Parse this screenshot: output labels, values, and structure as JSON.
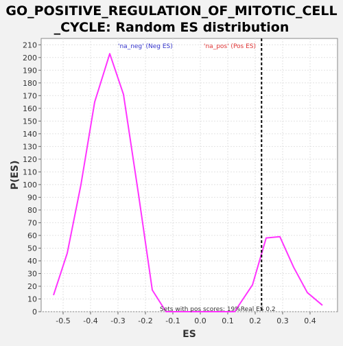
{
  "chart_data": {
    "type": "line",
    "title_line1": "GO_POSITIVE_REGULATION_OF_MITOTIC_CELL",
    "title_line2": "_CYCLE: Random ES distribution",
    "xlabel": "ES",
    "ylabel": "P(ES)",
    "xlim": [
      -0.58,
      0.5
    ],
    "ylim": [
      0,
      215
    ],
    "xticks": [
      -0.5,
      -0.4,
      -0.3,
      -0.2,
      -0.1,
      0.0,
      0.1,
      0.2,
      0.3,
      0.4
    ],
    "xtick_labels": [
      "-0.5",
      "-0.4",
      "-0.3",
      "-0.2",
      "-0.1",
      "0.0",
      "0.1",
      "0.2",
      "0.3",
      "0.4"
    ],
    "yticks": [
      0,
      10,
      20,
      30,
      40,
      50,
      60,
      70,
      80,
      90,
      100,
      110,
      120,
      130,
      140,
      150,
      160,
      170,
      180,
      190,
      200,
      210
    ],
    "grid": true,
    "series": [
      {
        "color": "#ff33ff",
        "x": [
          -0.535,
          -0.485,
          -0.435,
          -0.385,
          -0.33,
          -0.28,
          -0.225,
          -0.175,
          -0.125,
          -0.075,
          -0.025,
          0.025,
          0.075,
          0.125,
          0.19,
          0.24,
          0.29,
          0.34,
          0.39,
          0.445
        ],
        "y": [
          13,
          46,
          100,
          165,
          203,
          171,
          92,
          17,
          0,
          0,
          0,
          0,
          0,
          0,
          21,
          58,
          59,
          35,
          15,
          5
        ]
      }
    ],
    "real_es": 0.2232,
    "annotations": {
      "neg_label": "'na_neg' (Neg ES)",
      "neg_color": "#3333cc",
      "pos_label": "'na_pos' (Pos ES)",
      "pos_color": "#e03333",
      "bottom_note": "Sets with pos scores: 19%Real ES 0.2"
    }
  }
}
